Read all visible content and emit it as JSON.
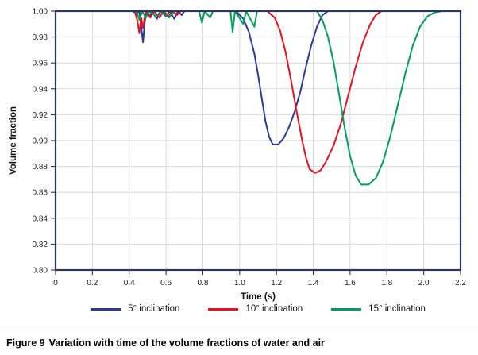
{
  "caption": {
    "label": "Figure 9",
    "text": "Variation with time of the volume fractions of water and air"
  },
  "chart_data": {
    "type": "line",
    "title": "",
    "xlabel": "Time (s)",
    "ylabel": "Volume fraction",
    "xlim": [
      0,
      2.2
    ],
    "ylim": [
      0.8,
      1.0
    ],
    "grid": true,
    "grid_color": "#d9d9d9",
    "frame_color": "#2a3560",
    "legend_position": "bottom",
    "xticks": [
      0,
      0.2,
      0.4,
      0.6,
      0.8,
      1.0,
      1.2,
      1.4,
      1.6,
      1.8,
      2.0,
      2.2
    ],
    "xtick_labels": [
      "0",
      "0.2",
      "0.4",
      "0.6",
      "0.8",
      "1.0",
      "1.2",
      "1.4",
      "1.6",
      "1.8",
      "2.0",
      "2.2"
    ],
    "yticks": [
      0.8,
      0.82,
      0.84,
      0.86,
      0.88,
      0.9,
      0.92,
      0.94,
      0.96,
      0.98,
      1.0
    ],
    "ytick_labels": [
      "0.80",
      "0.82",
      "0.84",
      "0.86",
      "0.88",
      "0.90",
      "0.92",
      "0.94",
      "0.96",
      "0.98",
      "1.00"
    ],
    "series": [
      {
        "name": "5° inclination",
        "color": "#2b3a9b",
        "points": [
          [
            0,
            1
          ],
          [
            0.42,
            1
          ],
          [
            0.44,
            0.998
          ],
          [
            0.455,
            1
          ],
          [
            0.465,
            0.988
          ],
          [
            0.475,
            0.976
          ],
          [
            0.485,
            0.992
          ],
          [
            0.495,
            1
          ],
          [
            0.51,
            0.996
          ],
          [
            0.525,
            1
          ],
          [
            0.55,
            0.994
          ],
          [
            0.57,
            1
          ],
          [
            0.6,
            0.996
          ],
          [
            0.62,
            1
          ],
          [
            0.645,
            0.994
          ],
          [
            0.665,
            1
          ],
          [
            0.685,
            0.997
          ],
          [
            0.7,
            1
          ],
          [
            0.98,
            1
          ],
          [
            1.02,
            0.994
          ],
          [
            1.05,
            0.984
          ],
          [
            1.08,
            0.967
          ],
          [
            1.1,
            0.951
          ],
          [
            1.12,
            0.933
          ],
          [
            1.14,
            0.915
          ],
          [
            1.16,
            0.903
          ],
          [
            1.18,
            0.897
          ],
          [
            1.21,
            0.897
          ],
          [
            1.24,
            0.902
          ],
          [
            1.27,
            0.911
          ],
          [
            1.3,
            0.923
          ],
          [
            1.33,
            0.938
          ],
          [
            1.36,
            0.957
          ],
          [
            1.39,
            0.974
          ],
          [
            1.42,
            0.988
          ],
          [
            1.45,
            0.997
          ],
          [
            1.48,
            1
          ],
          [
            2.1,
            1
          ]
        ]
      },
      {
        "name": "10° inclination",
        "color": "#e8121f",
        "points": [
          [
            0,
            1
          ],
          [
            0.43,
            1
          ],
          [
            0.445,
            0.992
          ],
          [
            0.455,
            0.983
          ],
          [
            0.465,
            0.995
          ],
          [
            0.475,
            0.987
          ],
          [
            0.49,
            1
          ],
          [
            0.515,
            0.995
          ],
          [
            0.535,
            1
          ],
          [
            0.565,
            0.995
          ],
          [
            0.585,
            1
          ],
          [
            0.615,
            0.996
          ],
          [
            0.635,
            1
          ],
          [
            0.66,
            0.997
          ],
          [
            0.68,
            1
          ],
          [
            1.15,
            1
          ],
          [
            1.19,
            0.995
          ],
          [
            1.22,
            0.985
          ],
          [
            1.25,
            0.968
          ],
          [
            1.28,
            0.946
          ],
          [
            1.31,
            0.922
          ],
          [
            1.34,
            0.9
          ],
          [
            1.36,
            0.887
          ],
          [
            1.38,
            0.878
          ],
          [
            1.41,
            0.875
          ],
          [
            1.44,
            0.877
          ],
          [
            1.47,
            0.884
          ],
          [
            1.51,
            0.896
          ],
          [
            1.55,
            0.913
          ],
          [
            1.59,
            0.935
          ],
          [
            1.63,
            0.957
          ],
          [
            1.67,
            0.976
          ],
          [
            1.71,
            0.99
          ],
          [
            1.74,
            0.997
          ],
          [
            1.77,
            1
          ],
          [
            2.1,
            1
          ]
        ]
      },
      {
        "name": "15° inclination",
        "color": "#00a05a",
        "points": [
          [
            0,
            1
          ],
          [
            0.44,
            1
          ],
          [
            0.455,
            0.993
          ],
          [
            0.47,
            1
          ],
          [
            0.49,
            0.995
          ],
          [
            0.51,
            1
          ],
          [
            0.545,
            0.996
          ],
          [
            0.575,
            1
          ],
          [
            0.615,
            0.995
          ],
          [
            0.645,
            1
          ],
          [
            0.78,
            1
          ],
          [
            0.795,
            0.991
          ],
          [
            0.81,
            1
          ],
          [
            0.84,
            0.995
          ],
          [
            0.855,
            1
          ],
          [
            0.95,
            1
          ],
          [
            0.962,
            0.984
          ],
          [
            0.975,
            1
          ],
          [
            1.02,
            0.99
          ],
          [
            1.035,
            1
          ],
          [
            1.08,
            0.988
          ],
          [
            1.095,
            1
          ],
          [
            1.42,
            1
          ],
          [
            1.45,
            0.993
          ],
          [
            1.48,
            0.98
          ],
          [
            1.51,
            0.961
          ],
          [
            1.54,
            0.936
          ],
          [
            1.57,
            0.91
          ],
          [
            1.6,
            0.888
          ],
          [
            1.63,
            0.873
          ],
          [
            1.66,
            0.866
          ],
          [
            1.7,
            0.866
          ],
          [
            1.74,
            0.871
          ],
          [
            1.78,
            0.884
          ],
          [
            1.82,
            0.904
          ],
          [
            1.86,
            0.928
          ],
          [
            1.9,
            0.952
          ],
          [
            1.94,
            0.973
          ],
          [
            1.98,
            0.988
          ],
          [
            2.02,
            0.996
          ],
          [
            2.06,
            0.999
          ],
          [
            2.1,
            1
          ]
        ]
      }
    ]
  }
}
